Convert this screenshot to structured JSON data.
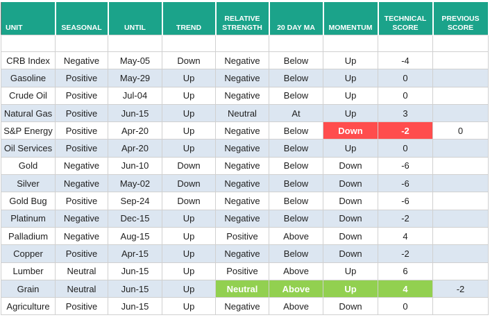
{
  "table": {
    "header": [
      "UNIT",
      "SEASONAL",
      "UNTIL",
      "TREND",
      "RELATIVE STRENGTH",
      "20 DAY MA",
      "MOMENTUM",
      "TECHNICAL SCORE",
      "PREVIOUS SCORE"
    ],
    "rows": [
      [
        "CRB Index",
        "Negative",
        "May-05",
        "Down",
        "Negative",
        "Below",
        "Up",
        "-4",
        null
      ],
      [
        "Gasoline",
        "Positive",
        "May-29",
        "Up",
        "Negative",
        "Below",
        "Up",
        "0",
        null
      ],
      [
        "Crude Oil",
        "Positive",
        "Jul-04",
        "Up",
        "Negative",
        "Below",
        "Up",
        "0",
        null
      ],
      [
        "Natural Gas",
        "Positive",
        "Jun-15",
        "Up",
        "Neutral",
        "At",
        "Up",
        "3",
        null
      ],
      [
        "S&P Energy",
        "Positive",
        "Apr-20",
        "Up",
        "Negative",
        "Below",
        "Down",
        "-2",
        "0"
      ],
      [
        "Oil Services",
        "Positive",
        "Apr-20",
        "Up",
        "Negative",
        "Below",
        "Up",
        "0",
        null
      ],
      [
        "Gold",
        "Negative",
        "Jun-10",
        "Down",
        "Negative",
        "Below",
        "Down",
        "-6",
        null
      ],
      [
        "Silver",
        "Negative",
        "May-02",
        "Down",
        "Negative",
        "Below",
        "Down",
        "-6",
        null
      ],
      [
        "Gold Bug",
        "Positive",
        "Sep-24",
        "Down",
        "Negative",
        "Below",
        "Down",
        "-6",
        null
      ],
      [
        "Platinum",
        "Negative",
        "Dec-15",
        "Up",
        "Negative",
        "Below",
        "Down",
        "-2",
        null
      ],
      [
        "Palladium",
        "Negative",
        "Aug-15",
        "Up",
        "Positive",
        "Above",
        "Down",
        "4",
        null
      ],
      [
        "Copper",
        "Positive",
        "Apr-15",
        "Up",
        "Negative",
        "Below",
        "Down",
        "-2",
        null
      ],
      [
        "Lumber",
        "Neutral",
        "Jun-15",
        "Up",
        "Positive",
        "Above",
        "Up",
        "6",
        null
      ],
      [
        "Grain",
        "Neutral",
        "Jun-15",
        "Up",
        "Neutral",
        "Above",
        "Up",
        "4",
        "-2"
      ],
      [
        "Agriculture",
        "Positive",
        "Jun-15",
        "Up",
        "Negative",
        "Above",
        "Down",
        "0",
        null
      ]
    ]
  }
}
